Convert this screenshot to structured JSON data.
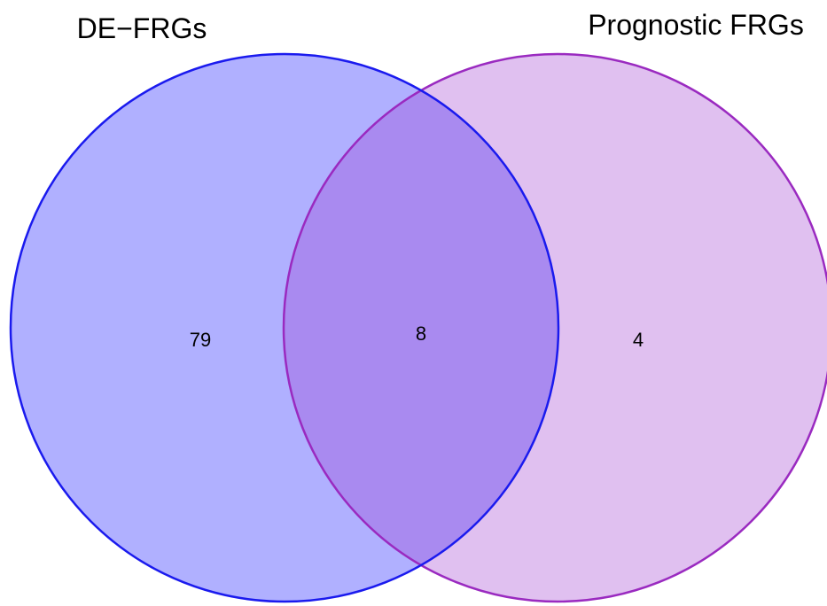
{
  "venn": {
    "sets": [
      {
        "label": "DE−FRGs",
        "fill": "#b0b0ff",
        "stroke": "#1a1aee"
      },
      {
        "label": "Prognostic FRGs",
        "fill": "#e0c0f0",
        "stroke": "#9a2ac0"
      }
    ],
    "overlap_fill": "#a98af0",
    "counts": {
      "only_de_frgs": "79",
      "intersection": "8",
      "only_prognostic_frgs": "4"
    }
  }
}
